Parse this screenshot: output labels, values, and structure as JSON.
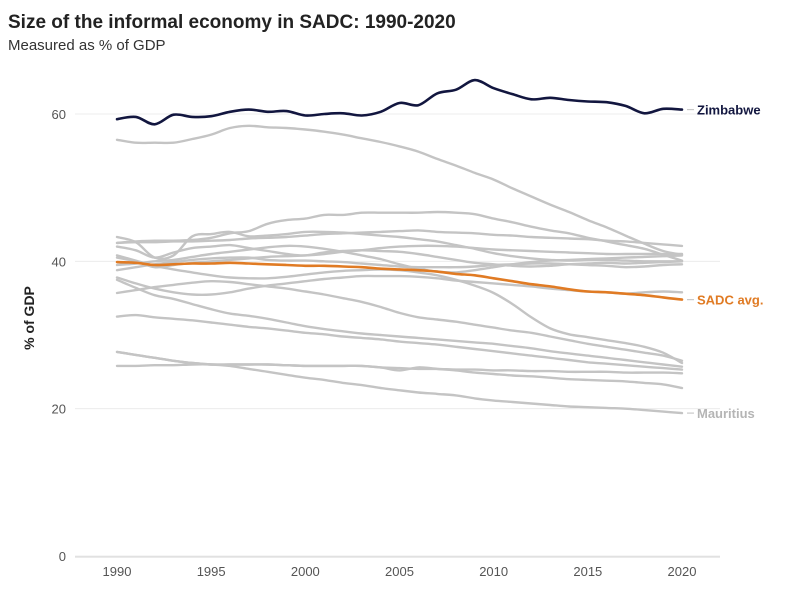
{
  "chart_data": {
    "type": "line",
    "title": "Size of the informal economy in SADC: 1990-2020",
    "subtitle": "Measured as % of GDP",
    "xlabel": "",
    "ylabel": "% of GDP",
    "xlim": [
      1990,
      2020
    ],
    "ylim": [
      0,
      65
    ],
    "x_ticks": [
      1990,
      1995,
      2000,
      2005,
      2010,
      2015,
      2020
    ],
    "y_ticks": [
      0,
      20,
      40,
      60
    ],
    "grid": "horizontal",
    "colors": {
      "highlight": "#12163f",
      "average": "#e07b24",
      "background": "#c4c4c4",
      "label_muted": "#b5b5b5"
    },
    "x": [
      1990,
      1991,
      1992,
      1993,
      1994,
      1995,
      1996,
      1997,
      1998,
      1999,
      2000,
      2001,
      2002,
      2003,
      2004,
      2005,
      2006,
      2007,
      2008,
      2009,
      2010,
      2011,
      2012,
      2013,
      2014,
      2015,
      2016,
      2017,
      2018,
      2019,
      2020
    ],
    "series": [
      {
        "name": "Zimbabwe",
        "role": "highlight",
        "values": [
          59.3,
          59.6,
          58.6,
          59.9,
          59.6,
          59.7,
          60.3,
          60.6,
          60.3,
          60.4,
          59.8,
          60.0,
          60.1,
          59.8,
          60.3,
          61.5,
          61.2,
          62.8,
          63.3,
          64.6,
          63.5,
          62.7,
          62.0,
          62.2,
          61.9,
          61.7,
          61.6,
          61.1,
          60.1,
          60.7,
          60.6
        ]
      },
      {
        "name": "SADC avg.",
        "role": "average",
        "values": [
          39.9,
          39.8,
          39.5,
          39.6,
          39.7,
          39.7,
          39.8,
          39.7,
          39.6,
          39.5,
          39.4,
          39.4,
          39.3,
          39.2,
          39.0,
          38.9,
          38.8,
          38.6,
          38.3,
          38.1,
          37.7,
          37.3,
          36.9,
          36.6,
          36.2,
          35.9,
          35.8,
          35.6,
          35.4,
          35.1,
          34.8
        ]
      },
      {
        "name": "Mauritius",
        "role": "labelled",
        "values": [
          25.8,
          25.8,
          25.9,
          25.9,
          26.0,
          26.0,
          25.8,
          25.4,
          25.0,
          24.6,
          24.2,
          23.9,
          23.5,
          23.2,
          22.8,
          22.5,
          22.2,
          22.0,
          21.8,
          21.4,
          21.1,
          20.9,
          20.7,
          20.5,
          20.3,
          20.2,
          20.1,
          20.0,
          19.8,
          19.6,
          19.4
        ]
      },
      {
        "values": [
          56.5,
          56.1,
          56.1,
          56.1,
          56.6,
          57.2,
          58.1,
          58.4,
          58.2,
          58.1,
          57.9,
          57.6,
          57.2,
          56.7,
          56.2,
          55.6,
          54.9,
          53.9,
          53.0,
          52.0,
          51.1,
          49.9,
          48.8,
          47.7,
          46.7,
          45.6,
          44.6,
          43.5,
          42.4,
          41.4,
          40.9
        ]
      },
      {
        "values": [
          42.5,
          42.7,
          42.8,
          42.8,
          42.9,
          43.2,
          43.8,
          44.1,
          45.1,
          45.6,
          45.8,
          46.3,
          46.3,
          46.6,
          46.6,
          46.6,
          46.6,
          46.7,
          46.6,
          46.4,
          45.8,
          45.3,
          44.7,
          44.2,
          43.8,
          43.2,
          42.7,
          42.2,
          41.7,
          40.9,
          40.1
        ]
      },
      {
        "values": [
          42.5,
          42.6,
          42.6,
          42.7,
          42.7,
          42.8,
          42.9,
          43.1,
          43.2,
          43.3,
          43.5,
          43.7,
          43.8,
          43.9,
          44.0,
          44.1,
          44.2,
          44.0,
          43.9,
          43.8,
          43.6,
          43.5,
          43.3,
          43.2,
          43.1,
          43.0,
          42.8,
          42.7,
          42.5,
          42.3,
          42.1
        ]
      },
      {
        "values": [
          43.3,
          42.6,
          40.5,
          40.8,
          43.4,
          43.7,
          44.0,
          43.4,
          43.5,
          43.7,
          44.0,
          44.0,
          43.9,
          43.7,
          43.5,
          43.3,
          43.0,
          42.7,
          42.2,
          41.7,
          41.1,
          40.7,
          40.4,
          40.2,
          40.1,
          40.2,
          40.2,
          40.1,
          40.0,
          40.0,
          40.0
        ]
      },
      {
        "values": [
          42.0,
          41.5,
          40.5,
          41.2,
          41.8,
          42.0,
          42.2,
          41.8,
          41.4,
          41.0,
          40.8,
          41.2,
          41.4,
          41.5,
          41.4,
          41.3,
          41.0,
          40.6,
          40.2,
          39.8,
          39.6,
          39.4,
          39.3,
          39.4,
          39.6,
          39.7,
          39.8,
          39.7,
          39.8,
          39.9,
          40.0
        ]
      },
      {
        "values": [
          40.5,
          40.0,
          39.2,
          39.5,
          39.8,
          40.0,
          40.2,
          40.4,
          40.6,
          40.7,
          40.8,
          41.0,
          41.3,
          41.5,
          41.8,
          42.0,
          42.1,
          42.1,
          42.0,
          41.8,
          41.6,
          41.5,
          41.4,
          41.3,
          41.2,
          41.1,
          41.0,
          41.0,
          41.0,
          41.0,
          41.0
        ]
      },
      {
        "values": [
          39.5,
          39.7,
          40.0,
          40.2,
          40.6,
          41.0,
          41.3,
          41.6,
          41.9,
          42.1,
          42.0,
          41.7,
          41.3,
          40.8,
          40.3,
          39.6,
          39.0,
          38.6,
          38.5,
          38.8,
          39.2,
          39.6,
          39.9,
          40.1,
          40.2,
          40.3,
          40.4,
          40.5,
          40.6,
          40.7,
          40.8
        ]
      },
      {
        "values": [
          38.8,
          39.2,
          39.6,
          39.9,
          40.2,
          40.4,
          40.5,
          40.5,
          40.2,
          40.1,
          40.1,
          40.0,
          39.9,
          39.7,
          39.5,
          39.3,
          39.2,
          39.2,
          39.2,
          39.3,
          39.5,
          39.6,
          39.7,
          39.7,
          39.6,
          39.5,
          39.4,
          39.2,
          39.3,
          39.5,
          39.6
        ]
      },
      {
        "values": [
          40.8,
          40.1,
          39.4,
          38.9,
          38.5,
          38.1,
          37.8,
          37.7,
          37.7,
          37.9,
          38.2,
          38.5,
          38.7,
          38.8,
          38.9,
          38.8,
          38.5,
          38.1,
          37.5,
          36.7,
          35.7,
          34.2,
          32.4,
          30.9,
          30.1,
          29.7,
          29.3,
          28.9,
          28.4,
          27.6,
          26.2
        ]
      },
      {
        "values": [
          37.8,
          37.0,
          36.3,
          35.8,
          35.5,
          35.5,
          35.8,
          36.3,
          36.7,
          37.0,
          37.3,
          37.6,
          37.8,
          38.0,
          38.0,
          38.0,
          37.9,
          37.7,
          37.4,
          37.2,
          37.0,
          36.8,
          36.6,
          36.3,
          36.1,
          35.9,
          35.8,
          35.6,
          35.8,
          35.9,
          35.8
        ]
      },
      {
        "values": [
          37.5,
          36.4,
          35.4,
          34.9,
          34.2,
          33.5,
          32.9,
          32.6,
          32.2,
          31.7,
          31.2,
          30.8,
          30.5,
          30.2,
          30.0,
          29.8,
          29.6,
          29.4,
          29.2,
          29.0,
          28.8,
          28.5,
          28.2,
          27.8,
          27.5,
          27.2,
          26.9,
          26.6,
          26.3,
          26.0,
          25.7
        ]
      },
      {
        "values": [
          35.7,
          36.1,
          36.5,
          36.8,
          37.1,
          37.3,
          37.2,
          36.9,
          36.6,
          36.3,
          35.9,
          35.5,
          35.0,
          34.5,
          33.8,
          33.0,
          32.4,
          32.1,
          31.8,
          31.4,
          31.0,
          30.6,
          30.3,
          29.8,
          29.3,
          28.8,
          28.4,
          28.0,
          27.6,
          27.2,
          26.5
        ]
      },
      {
        "values": [
          32.5,
          32.7,
          32.4,
          32.2,
          32.0,
          31.7,
          31.4,
          31.1,
          30.9,
          30.6,
          30.3,
          30.1,
          29.8,
          29.6,
          29.4,
          29.1,
          28.9,
          28.7,
          28.4,
          28.1,
          27.8,
          27.5,
          27.2,
          26.9,
          26.6,
          26.3,
          26.1,
          25.9,
          25.7,
          25.5,
          25.3
        ]
      },
      {
        "values": [
          27.7,
          27.3,
          26.9,
          26.5,
          26.2,
          26.0,
          26.0,
          26.0,
          26.0,
          25.9,
          25.8,
          25.8,
          25.8,
          25.8,
          25.6,
          25.2,
          25.6,
          25.4,
          25.2,
          24.9,
          24.7,
          24.5,
          24.4,
          24.2,
          24.0,
          23.9,
          23.8,
          23.7,
          23.5,
          23.3,
          22.8
        ]
      },
      {
        "values": [
          27.7,
          27.3,
          26.9,
          26.5,
          26.2,
          26.0,
          26.0,
          26.0,
          26.0,
          25.9,
          25.8,
          25.8,
          25.8,
          25.8,
          25.6,
          25.5,
          25.4,
          25.4,
          25.3,
          25.3,
          25.2,
          25.2,
          25.1,
          25.1,
          25.0,
          25.0,
          25.0,
          24.9,
          24.9,
          24.9,
          24.8
        ]
      }
    ]
  }
}
